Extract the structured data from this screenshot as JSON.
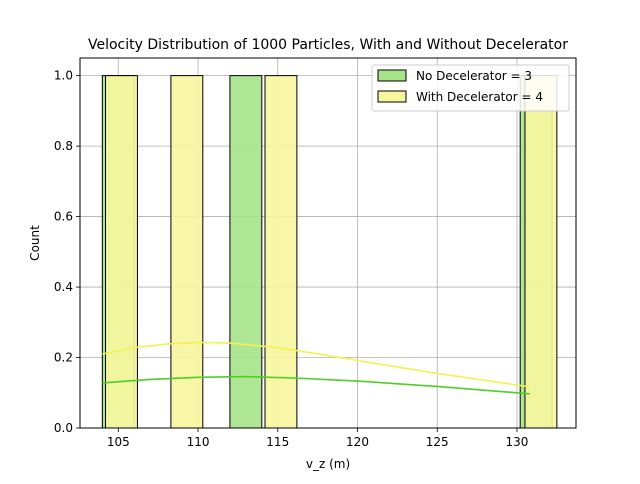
{
  "chart_data": {
    "type": "bar",
    "title": "Velocity Distribution of 1000 Particles, With and Without Decelerator",
    "xlabel": "v_z (m)",
    "ylabel": "Count",
    "xlim": [
      102.6,
      133.7
    ],
    "ylim": [
      0,
      1.05
    ],
    "xticks": [
      105,
      110,
      115,
      120,
      125,
      130
    ],
    "yticks": [
      0.0,
      0.2,
      0.4,
      0.6,
      0.8,
      1.0
    ],
    "xtick_labels": [
      "105",
      "110",
      "115",
      "120",
      "125",
      "130"
    ],
    "ytick_labels": [
      "0.0",
      "0.2",
      "0.4",
      "0.6",
      "0.8",
      "1.0"
    ],
    "grid": true,
    "legend_position": "top-right",
    "series": [
      {
        "name": "No Decelerator = 3",
        "color": "#a6e389",
        "line_color": "#4fce28",
        "bars": [
          {
            "x0": 104.0,
            "x1": 106.0,
            "count": 1.0
          },
          {
            "x0": 112.0,
            "x1": 114.0,
            "count": 1.0
          },
          {
            "x0": 130.2,
            "x1": 132.2,
            "count": 1.0
          }
        ],
        "kde": [
          [
            104.0,
            0.128
          ],
          [
            107.0,
            0.138
          ],
          [
            110.0,
            0.144
          ],
          [
            113.0,
            0.146
          ],
          [
            116.0,
            0.142
          ],
          [
            120.0,
            0.133
          ],
          [
            125.0,
            0.118
          ],
          [
            130.8,
            0.097
          ]
        ]
      },
      {
        "name": "With Decelerator = 4",
        "color": "#f7f69f",
        "line_color": "#f2f250",
        "bars": [
          {
            "x0": 104.2,
            "x1": 106.2,
            "count": 1.0
          },
          {
            "x0": 108.3,
            "x1": 110.3,
            "count": 1.0
          },
          {
            "x0": 114.2,
            "x1": 116.2,
            "count": 1.0
          },
          {
            "x0": 130.5,
            "x1": 132.5,
            "count": 1.0
          }
        ],
        "kde": [
          [
            104.0,
            0.21
          ],
          [
            106.0,
            0.228
          ],
          [
            108.0,
            0.238
          ],
          [
            110.0,
            0.243
          ],
          [
            112.0,
            0.241
          ],
          [
            115.0,
            0.228
          ],
          [
            118.0,
            0.207
          ],
          [
            121.0,
            0.184
          ],
          [
            125.0,
            0.155
          ],
          [
            130.8,
            0.117
          ]
        ]
      }
    ]
  }
}
